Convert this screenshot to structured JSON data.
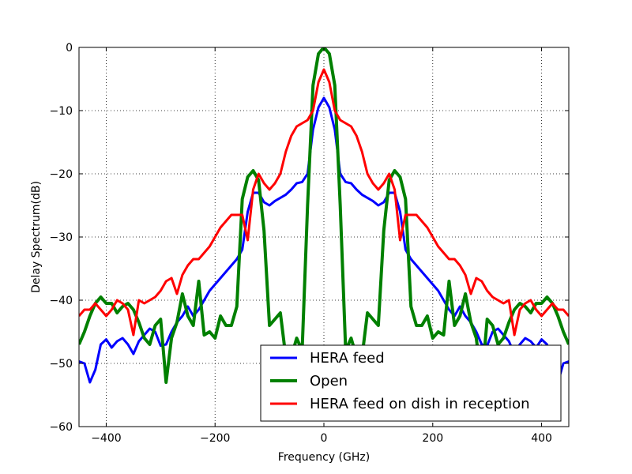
{
  "chart_data": {
    "type": "line",
    "xlabel": "Frequency (GHz)",
    "ylabel": "Delay Spectrum(dB)",
    "x": [
      -450,
      -440,
      -430,
      -420,
      -410,
      -400,
      -390,
      -380,
      -370,
      -360,
      -350,
      -340,
      -330,
      -320,
      -310,
      -300,
      -290,
      -280,
      -270,
      -260,
      -250,
      -240,
      -230,
      -220,
      -210,
      -200,
      -190,
      -180,
      -170,
      -160,
      -150,
      -140,
      -130,
      -120,
      -110,
      -100,
      -90,
      -80,
      -70,
      -60,
      -50,
      -40,
      -30,
      -20,
      -10,
      0,
      10,
      20,
      30,
      40,
      50,
      60,
      70,
      80,
      90,
      100,
      110,
      120,
      130,
      140,
      150,
      160,
      170,
      180,
      190,
      200,
      210,
      220,
      230,
      240,
      250,
      260,
      270,
      280,
      290,
      300,
      310,
      320,
      330,
      340,
      350,
      360,
      370,
      380,
      390,
      400,
      410,
      420,
      430,
      440,
      450
    ],
    "series": [
      {
        "name": "HERA feed",
        "color": "#0000ff",
        "width": 3,
        "values": [
          -49.7,
          -50,
          -53,
          -51,
          -47,
          -46.2,
          -47.5,
          -46.5,
          -46,
          -47,
          -48.5,
          -46.5,
          -45.5,
          -44.5,
          -45,
          -47.2,
          -47,
          -45,
          -43.5,
          -42.5,
          -41,
          -42.5,
          -41.5,
          -40,
          -38.5,
          -37.5,
          -36.5,
          -35.5,
          -34.5,
          -33.5,
          -32,
          -26,
          -23,
          -23,
          -24.5,
          -25,
          -24.3,
          -23.8,
          -23.3,
          -22.5,
          -21.5,
          -21.3,
          -20,
          -13,
          -9.5,
          -8,
          -9.5,
          -13,
          -20,
          -21.3,
          -21.5,
          -22.5,
          -23.3,
          -23.8,
          -24.3,
          -25,
          -24.5,
          -23,
          -23,
          -26,
          -32,
          -33.5,
          -34.5,
          -35.5,
          -36.5,
          -37.5,
          -38.5,
          -40,
          -41.5,
          -42.5,
          -41,
          -42.5,
          -43.5,
          -45,
          -47,
          -47.2,
          -45,
          -44.5,
          -45.5,
          -46.5,
          -48.5,
          -47,
          -46,
          -46.5,
          -47.5,
          -46.2,
          -47,
          -51,
          -53,
          -50,
          -49.7
        ]
      },
      {
        "name": "Open",
        "color": "#008000",
        "width": 4,
        "values": [
          -47,
          -45,
          -42.5,
          -40.5,
          -39.5,
          -40.5,
          -40.5,
          -42,
          -41,
          -40.5,
          -41.5,
          -43.5,
          -46,
          -47,
          -44,
          -43,
          -53,
          -46,
          -43.5,
          -39,
          -42.5,
          -44,
          -37,
          -45.5,
          -45,
          -46,
          -42.5,
          -44,
          -44,
          -41,
          -24,
          -20.5,
          -19.5,
          -21,
          -29,
          -44,
          -43,
          -42,
          -49,
          -49,
          -46,
          -48,
          -25,
          -6,
          -1,
          0,
          -1,
          -6,
          -25,
          -48,
          -46,
          -49,
          -49,
          -42,
          -43,
          -44,
          -29,
          -21,
          -19.5,
          -20.5,
          -24,
          -41,
          -44,
          -44,
          -42.5,
          -46,
          -45,
          -45.5,
          -37,
          -44,
          -42.5,
          -39,
          -43.5,
          -46,
          -53,
          -43,
          -44,
          -47,
          -46,
          -43.5,
          -41.5,
          -40.5,
          -41,
          -42,
          -40.5,
          -40.5,
          -39.5,
          -40.5,
          -42.5,
          -45,
          -47
        ]
      },
      {
        "name": "HERA feed on dish in reception",
        "color": "#ff0000",
        "width": 3,
        "values": [
          -42.5,
          -41.5,
          -41.5,
          -40.5,
          -41.5,
          -42.5,
          -41.5,
          -40,
          -40.5,
          -41.5,
          -45.5,
          -40,
          -40.5,
          -40,
          -39.5,
          -38.5,
          -37,
          -36.5,
          -39,
          -36,
          -34.5,
          -33.5,
          -33.5,
          -32.5,
          -31.5,
          -30,
          -28.5,
          -27.5,
          -26.5,
          -26.5,
          -26.5,
          -30.5,
          -22.5,
          -20,
          -21.5,
          -22.5,
          -21.5,
          -20,
          -16.5,
          -14,
          -12.5,
          -12,
          -11.5,
          -10,
          -5.5,
          -3.5,
          -5.5,
          -10,
          -11.5,
          -12,
          -12.5,
          -14,
          -16.5,
          -20,
          -21.5,
          -22.5,
          -21.5,
          -20,
          -22.5,
          -30.5,
          -26.5,
          -26.5,
          -26.5,
          -27.5,
          -28.5,
          -30,
          -31.5,
          -32.5,
          -33.5,
          -33.5,
          -34.5,
          -36,
          -39,
          -36.5,
          -37,
          -38.5,
          -39.5,
          -40,
          -40.5,
          -40,
          -45.5,
          -41.5,
          -40.5,
          -40,
          -41.5,
          -42.5,
          -41.5,
          -40.5,
          -41.5,
          -41.5,
          -42.5
        ]
      }
    ],
    "xlim": [
      -450,
      450
    ],
    "ylim": [
      -60,
      0
    ],
    "xticks": [
      {
        "value": -400,
        "label": "−400"
      },
      {
        "value": -200,
        "label": "−200"
      },
      0,
      200,
      400
    ],
    "yticks": [
      {
        "value": -60,
        "label": "−60"
      },
      {
        "value": -50,
        "label": "−50"
      },
      {
        "value": -40,
        "label": "−40"
      },
      {
        "value": -30,
        "label": "−30"
      },
      {
        "value": -20,
        "label": "−20"
      },
      {
        "value": -10,
        "label": "−10"
      },
      0
    ],
    "grid": true,
    "legend": "lower right"
  }
}
